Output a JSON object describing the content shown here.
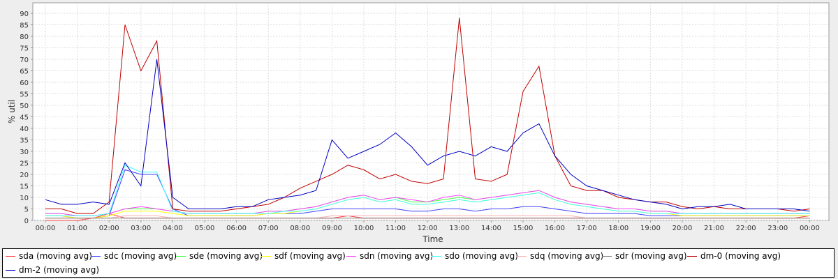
{
  "chart_data": {
    "type": "line",
    "title": "",
    "xlabel": "Time",
    "ylabel": "% util",
    "ylim": [
      0,
      92
    ],
    "xlim_hours": [
      -0.1,
      24.4
    ],
    "grid": true,
    "legend_placement": "bottom",
    "y_ticks": [
      "0",
      "5",
      "10",
      "15",
      "20",
      "25",
      "30",
      "35",
      "40",
      "45",
      "50",
      "55",
      "60",
      "65",
      "70",
      "75",
      "80",
      "85",
      "90"
    ],
    "x_ticks": [
      "00:00",
      "01:00",
      "02:00",
      "03:00",
      "04:00",
      "05:00",
      "06:00",
      "07:00",
      "08:00",
      "09:00",
      "10:00",
      "11:00",
      "12:00",
      "13:00",
      "14:00",
      "15:00",
      "16:00",
      "17:00",
      "18:00",
      "19:00",
      "20:00",
      "21:00",
      "22:00",
      "23:00",
      "00:00"
    ],
    "x_step_hours": 0.5,
    "series": [
      {
        "name": "sda (moving avg)",
        "color": "#ff4040",
        "values": [
          0,
          0,
          0,
          1,
          3,
          1,
          1,
          1,
          1,
          1,
          1,
          1,
          1,
          1,
          1,
          1,
          1,
          1,
          1,
          2,
          1,
          1,
          1,
          1,
          1,
          1,
          1,
          1,
          1,
          1,
          1,
          1,
          1,
          1,
          1,
          1,
          1,
          1,
          1,
          1,
          1,
          1,
          1,
          1,
          1,
          1,
          1,
          1,
          2
        ]
      },
      {
        "name": "sdc (moving avg)",
        "color": "#4040ff",
        "values": [
          2,
          2,
          1,
          1,
          2,
          22,
          20,
          20,
          5,
          2,
          2,
          2,
          2,
          2,
          3,
          3,
          3,
          4,
          5,
          5,
          5,
          5,
          5,
          4,
          4,
          5,
          5,
          4,
          5,
          5,
          6,
          6,
          5,
          4,
          3,
          3,
          3,
          3,
          2,
          2,
          2,
          2,
          2,
          2,
          2,
          2,
          2,
          2,
          2
        ]
      },
      {
        "name": "sde (moving avg)",
        "color": "#40ff40",
        "values": [
          3,
          3,
          2,
          2,
          3,
          5,
          5,
          5,
          4,
          3,
          3,
          3,
          3,
          3,
          4,
          4,
          5,
          6,
          8,
          10,
          11,
          9,
          10,
          8,
          8,
          9,
          10,
          9,
          10,
          11,
          12,
          13,
          10,
          8,
          7,
          6,
          5,
          5,
          4,
          4,
          3,
          3,
          3,
          3,
          3,
          3,
          3,
          3,
          3
        ]
      },
      {
        "name": "sdf (moving avg)",
        "color": "#ffff00",
        "values": [
          2,
          2,
          1,
          1,
          2,
          4,
          4,
          4,
          3,
          2,
          2,
          2,
          2,
          2,
          3,
          3,
          4,
          5,
          7,
          9,
          10,
          8,
          9,
          7,
          7,
          8,
          9,
          8,
          9,
          10,
          11,
          12,
          9,
          7,
          6,
          5,
          4,
          4,
          3,
          3,
          2,
          2,
          2,
          2,
          2,
          2,
          2,
          2,
          2
        ]
      },
      {
        "name": "sdn (moving avg)",
        "color": "#ff40ff",
        "values": [
          3,
          3,
          2,
          2,
          3,
          5,
          6,
          5,
          4,
          3,
          3,
          3,
          3,
          3,
          4,
          4,
          5,
          6,
          8,
          10,
          11,
          9,
          10,
          9,
          8,
          10,
          11,
          9,
          10,
          11,
          12,
          13,
          10,
          8,
          7,
          6,
          5,
          5,
          4,
          4,
          3,
          3,
          3,
          3,
          3,
          3,
          3,
          3,
          3
        ]
      },
      {
        "name": "sdo (moving avg)",
        "color": "#40ffff",
        "values": [
          2,
          2,
          2,
          2,
          3,
          24,
          21,
          21,
          4,
          3,
          3,
          3,
          3,
          3,
          3,
          4,
          4,
          5,
          7,
          9,
          10,
          8,
          9,
          7,
          7,
          8,
          9,
          8,
          9,
          10,
          11,
          12,
          9,
          7,
          6,
          5,
          4,
          4,
          3,
          3,
          3,
          3,
          3,
          3,
          3,
          3,
          3,
          3,
          3
        ]
      },
      {
        "name": "sdq (moving avg)",
        "color": "#ffafaf",
        "values": [
          1,
          1,
          1,
          1,
          1,
          2,
          2,
          2,
          1,
          1,
          1,
          1,
          1,
          1,
          1,
          1,
          1,
          1,
          2,
          2,
          2,
          2,
          2,
          2,
          2,
          2,
          2,
          2,
          2,
          2,
          2,
          2,
          2,
          2,
          1,
          1,
          1,
          1,
          1,
          1,
          1,
          1,
          1,
          1,
          1,
          1,
          1,
          1,
          1
        ]
      },
      {
        "name": "sdr (moving avg)",
        "color": "#808080",
        "values": [
          1,
          1,
          1,
          1,
          1,
          1,
          1,
          1,
          1,
          1,
          1,
          1,
          1,
          1,
          1,
          1,
          1,
          1,
          1,
          1,
          1,
          1,
          1,
          1,
          1,
          1,
          1,
          1,
          1,
          1,
          1,
          1,
          1,
          1,
          1,
          1,
          1,
          1,
          1,
          1,
          1,
          1,
          1,
          1,
          1,
          1,
          1,
          1,
          1
        ]
      },
      {
        "name": "dm-0 (moving avg)",
        "color": "#c00000",
        "values": [
          5,
          5,
          3,
          3,
          8,
          85,
          65,
          78,
          5,
          4,
          4,
          4,
          5,
          6,
          7,
          10,
          14,
          17,
          20,
          24,
          22,
          18,
          20,
          17,
          16,
          18,
          88,
          18,
          17,
          20,
          56,
          67,
          28,
          15,
          13,
          13,
          10,
          9,
          8,
          8,
          6,
          5,
          6,
          5,
          5,
          5,
          5,
          4,
          5
        ]
      },
      {
        "name": "dm-2 (moving avg)",
        "color": "#0000c0",
        "values": [
          9,
          7,
          7,
          8,
          7,
          25,
          15,
          70,
          10,
          5,
          5,
          5,
          6,
          6,
          9,
          10,
          11,
          13,
          35,
          27,
          30,
          33,
          38,
          32,
          24,
          28,
          30,
          28,
          32,
          30,
          38,
          42,
          28,
          20,
          15,
          13,
          11,
          9,
          8,
          7,
          5,
          6,
          6,
          7,
          5,
          5,
          5,
          5,
          4
        ]
      }
    ]
  }
}
